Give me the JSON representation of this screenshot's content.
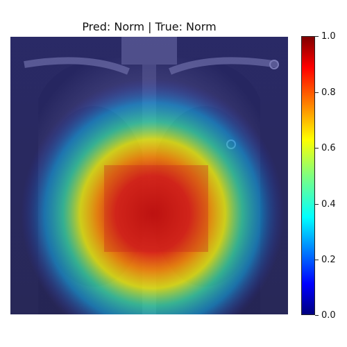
{
  "figure": {
    "title": "Pred: Norm | True: Norm"
  },
  "colorbar": {
    "colormap": "jet",
    "range": [
      0.0,
      1.0
    ],
    "ticks": [
      "0.0",
      "0.2",
      "0.4",
      "0.6",
      "0.8",
      "1.0"
    ]
  },
  "image": {
    "content": "chest-xray-with-heatmap-overlay",
    "overlay_peak_value": 1.0
  }
}
